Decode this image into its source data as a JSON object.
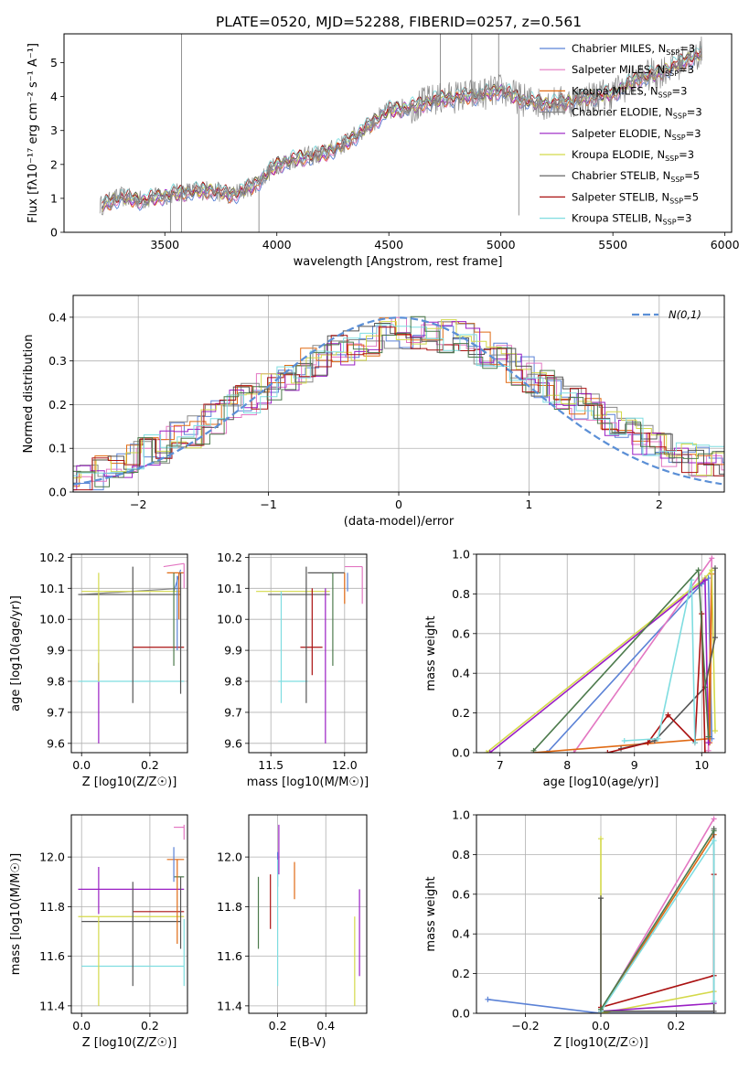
{
  "figure": {
    "title": "PLATE=0520, MJD=52288, FIBERID=0257, z=0.561"
  },
  "colors": {
    "Chabrier MILES": "#5b82d6",
    "Salpeter MILES": "#e377c2",
    "Kroupa MILES": "#e06a14",
    "Chabrier ELODIE": "#888888",
    "Salpeter ELODIE": "#9a1fc4",
    "Kroupa ELODIE": "#d4d94a",
    "Chabrier STELIB": "#555555",
    "Salpeter STELIB": "#aa1111",
    "Kroupa STELIB": "#7fdde0",
    "Normal": "#5b8fd6",
    "Green": "#4c7a4c"
  },
  "chart_data": [
    {
      "id": "spectrum",
      "type": "line",
      "xlabel": "wavelength [Angstrom, rest frame]",
      "ylabel": "Flux [fλ10⁻¹⁷ erg cm⁻² s⁻¹ A⁻¹]",
      "xlim": [
        3050,
        6030
      ],
      "ylim": [
        0,
        5.85
      ],
      "xticks": [
        3500,
        4000,
        4500,
        5000,
        5500,
        6000
      ],
      "yticks": [
        0,
        1,
        2,
        3,
        4,
        5
      ],
      "legend_position": "right",
      "series": [
        {
          "name": "Chabrier MILES, N_SSP=3",
          "label_main": "Chabrier MILES, N",
          "label_sub": "SSP",
          "label_end": "=3",
          "color_key": "Chabrier MILES"
        },
        {
          "name": "Salpeter MILES, N_SSP=3",
          "label_main": "Salpeter MILES, N",
          "label_sub": "SSP",
          "label_end": "=3",
          "color_key": "Salpeter MILES"
        },
        {
          "name": "Kroupa MILES, N_SSP=3",
          "label_main": "Kroupa MILES, N",
          "label_sub": "SSP",
          "label_end": "=3",
          "color_key": "Kroupa MILES"
        },
        {
          "name": "Chabrier ELODIE, N_SSP=3",
          "label_main": "Chabrier ELODIE, N",
          "label_sub": "SSP",
          "label_end": "=3",
          "color_key": "Chabrier ELODIE"
        },
        {
          "name": "Salpeter ELODIE, N_SSP=3",
          "label_main": "Salpeter ELODIE, N",
          "label_sub": "SSP",
          "label_end": "=3",
          "color_key": "Salpeter ELODIE"
        },
        {
          "name": "Kroupa ELODIE, N_SSP=3",
          "label_main": "Kroupa ELODIE, N",
          "label_sub": "SSP",
          "label_end": "=3",
          "color_key": "Kroupa ELODIE"
        },
        {
          "name": "Chabrier STELIB, N_SSP=5",
          "label_main": "Chabrier STELIB, N",
          "label_sub": "SSP",
          "label_end": "=5",
          "color_key": "Chabrier STELIB"
        },
        {
          "name": "Salpeter STELIB, N_SSP=5",
          "label_main": "Salpeter STELIB, N",
          "label_sub": "SSP",
          "label_end": "=5",
          "color_key": "Salpeter STELIB"
        },
        {
          "name": "Kroupa STELIB, N_SSP=3",
          "label_main": "Kroupa STELIB, N",
          "label_sub": "SSP",
          "label_end": "=3",
          "color_key": "Kroupa STELIB"
        }
      ],
      "continuum": {
        "x": [
          3220,
          3300,
          3400,
          3500,
          3600,
          3700,
          3800,
          3900,
          4000,
          4100,
          4200,
          4300,
          4400,
          4500,
          4600,
          4700,
          4800,
          4900,
          5000,
          5100,
          5200,
          5300,
          5400,
          5500,
          5600,
          5700,
          5800,
          5900
        ],
        "y": [
          0.8,
          1.05,
          0.95,
          1.1,
          1.2,
          1.25,
          1.1,
          1.4,
          2.0,
          2.2,
          2.3,
          2.6,
          3.1,
          3.6,
          3.7,
          3.9,
          4.0,
          4.05,
          4.2,
          3.9,
          3.8,
          3.85,
          4.0,
          4.1,
          4.5,
          4.7,
          5.0,
          5.3
        ]
      }
    },
    {
      "id": "residuals",
      "type": "line",
      "xlabel": "(data-model)/error",
      "ylabel": "Normed distribution",
      "xlim": [
        -2.5,
        2.5
      ],
      "ylim": [
        0,
        0.45
      ],
      "xticks": [
        -2,
        -1,
        0,
        1,
        2
      ],
      "yticks": [
        0.0,
        0.1,
        0.2,
        0.3,
        0.4
      ],
      "legend_position": "top-right",
      "legend": "N(0,1)",
      "hist_profile": {
        "x": [
          -2.5,
          -2.0,
          -1.5,
          -1.0,
          -0.5,
          0.0,
          0.5,
          1.0,
          1.5,
          2.0,
          2.5
        ],
        "y": [
          0.02,
          0.08,
          0.15,
          0.24,
          0.32,
          0.37,
          0.35,
          0.27,
          0.18,
          0.1,
          0.06
        ]
      }
    },
    {
      "id": "age_vs_Z",
      "type": "scatter",
      "xlabel": "Z [log10(Z/Z☉)]",
      "ylabel": "age  [log10(age/yr)]",
      "xlim": [
        -0.03,
        0.31
      ],
      "ylim": [
        9.57,
        10.21
      ],
      "xticks": [
        0.0,
        0.2
      ],
      "yticks": [
        9.6,
        9.7,
        9.8,
        9.9,
        10.0,
        10.1,
        10.2
      ],
      "points": [
        {
          "c": "Chabrier MILES",
          "x": [
            0.27,
            0.29
          ],
          "y": [
            10.09,
            10.16
          ]
        },
        {
          "c": "Salpeter MILES",
          "x": [
            0.24,
            0.3
          ],
          "y": [
            10.17,
            10.18
          ]
        },
        {
          "c": "Kroupa MILES",
          "x": [
            0.25,
            0.3
          ],
          "y": [
            10.15,
            10.15
          ]
        },
        {
          "c": "Chabrier ELODIE",
          "x": [
            0.0,
            0.29
          ],
          "y": [
            10.08,
            10.1
          ]
        },
        {
          "c": "Salpeter ELODIE",
          "x": [
            0.05,
            0.05
          ],
          "y": [
            9.6,
            9.86
          ]
        },
        {
          "c": "Kroupa ELODIE",
          "x": [
            0.0,
            0.29
          ],
          "y": [
            10.09,
            10.09
          ]
        },
        {
          "c": "Chabrier STELIB",
          "x": [
            -0.01,
            0.29
          ],
          "y": [
            10.08,
            10.08
          ]
        },
        {
          "c": "Salpeter STELIB",
          "x": [
            0.15,
            0.3
          ],
          "y": [
            9.91,
            9.91
          ]
        },
        {
          "c": "Kroupa STELIB",
          "x": [
            -0.01,
            0.3
          ],
          "y": [
            9.8,
            9.8
          ]
        }
      ],
      "vbars": [
        {
          "c": "Chabrier STELIB",
          "x": 0.15,
          "y": [
            9.73,
            10.17
          ]
        },
        {
          "c": "Kroupa ELODIE",
          "x": 0.05,
          "y": [
            9.8,
            10.15
          ]
        },
        {
          "c": "Green",
          "x": 0.27,
          "y": [
            9.85,
            10.15
          ]
        },
        {
          "c": "Chabrier STELIB",
          "x": 0.29,
          "y": [
            9.76,
            10.15
          ]
        },
        {
          "c": "Salpeter MILES",
          "x": 0.3,
          "y": [
            10.1,
            10.18
          ]
        },
        {
          "c": "Chabrier MILES",
          "x": 0.28,
          "y": [
            9.9,
            10.14
          ]
        },
        {
          "c": "Kroupa MILES",
          "x": 0.285,
          "y": [
            10.0,
            10.15
          ]
        }
      ]
    },
    {
      "id": "age_vs_mass",
      "type": "scatter",
      "xlabel": "mass [log10(M/M☉)]",
      "ylabel": "",
      "xlim": [
        11.35,
        12.15
      ],
      "ylim": [
        9.57,
        10.21
      ],
      "xticks": [
        11.5,
        12.0
      ],
      "yticks": [
        9.6,
        9.7,
        9.8,
        9.9,
        10.0,
        10.1,
        10.2
      ],
      "points": [
        {
          "c": "Chabrier STELIB",
          "x": [
            11.48,
            11.9
          ],
          "y": [
            10.08,
            10.08
          ]
        },
        {
          "c": "Kroupa ELODIE",
          "x": [
            11.4,
            11.9
          ],
          "y": [
            10.09,
            10.09
          ]
        },
        {
          "c": "Salpeter STELIB",
          "x": [
            11.7,
            11.85
          ],
          "y": [
            9.91,
            9.91
          ]
        },
        {
          "c": "Kroupa STELIB",
          "x": [
            11.55,
            11.75
          ],
          "y": [
            9.8,
            9.8
          ]
        },
        {
          "c": "Chabrier STELIB",
          "x": [
            11.75,
            12.0
          ],
          "y": [
            10.15,
            10.15
          ]
        },
        {
          "c": "Salpeter MILES",
          "x": [
            12.0,
            12.12
          ],
          "y": [
            10.17,
            10.17
          ]
        }
      ],
      "vbars": [
        {
          "c": "Chabrier STELIB",
          "x": 11.74,
          "y": [
            9.73,
            10.17
          ]
        },
        {
          "c": "Kroupa STELIB",
          "x": 11.57,
          "y": [
            9.73,
            10.09
          ]
        },
        {
          "c": "Salpeter ELODIE",
          "x": 11.87,
          "y": [
            9.6,
            10.1
          ]
        },
        {
          "c": "Salpeter STELIB",
          "x": 11.78,
          "y": [
            9.82,
            10.1
          ]
        },
        {
          "c": "Green",
          "x": 11.92,
          "y": [
            9.85,
            10.15
          ]
        },
        {
          "c": "Salpeter MILES",
          "x": 12.12,
          "y": [
            10.05,
            10.17
          ]
        },
        {
          "c": "Kroupa MILES",
          "x": 12.0,
          "y": [
            10.05,
            10.15
          ]
        },
        {
          "c": "Chabrier MILES",
          "x": 12.02,
          "y": [
            10.09,
            10.15
          ]
        }
      ]
    },
    {
      "id": "weight_vs_age",
      "type": "line",
      "xlabel": "age  [log10(age/yr)]",
      "ylabel": "mass weight",
      "xlim": [
        6.65,
        10.35
      ],
      "ylim": [
        0,
        1
      ],
      "xticks": [
        7,
        8,
        9,
        10
      ],
      "yticks": [
        0.0,
        0.2,
        0.4,
        0.6,
        0.8,
        1.0
      ],
      "series": [
        {
          "c": "Chabrier MILES",
          "x": [
            7.7,
            10.0,
            10.1,
            10.15
          ],
          "y": [
            0.0,
            0.85,
            0.88,
            0.07
          ]
        },
        {
          "c": "Salpeter MILES",
          "x": [
            8.1,
            10.15,
            10.1
          ],
          "y": [
            0.0,
            0.98,
            0.01
          ]
        },
        {
          "c": "Kroupa MILES",
          "x": [
            7.5,
            10.1,
            10.15,
            10.12
          ],
          "y": [
            0.0,
            0.07,
            0.9,
            0.05
          ]
        },
        {
          "c": "Kroupa ELODIE",
          "x": [
            6.8,
            10.05,
            10.15,
            10.2
          ],
          "y": [
            0.0,
            0.88,
            0.92,
            0.11
          ]
        },
        {
          "c": "Salpeter ELODIE",
          "x": [
            6.85,
            10.05,
            10.1
          ],
          "y": [
            0.0,
            0.87,
            0.05
          ]
        },
        {
          "c": "Chabrier STELIB",
          "x": [
            8.8,
            9.3,
            10.05,
            10.2,
            10.2
          ],
          "y": [
            0.02,
            0.06,
            0.33,
            0.58,
            0.93
          ]
        },
        {
          "c": "Salpeter STELIB",
          "x": [
            8.6,
            9.2,
            9.5,
            9.9,
            10.0,
            10.05
          ],
          "y": [
            0.0,
            0.05,
            0.19,
            0.05,
            0.7,
            0.0
          ]
        },
        {
          "c": "Kroupa STELIB",
          "x": [
            8.85,
            9.35,
            9.85,
            9.9
          ],
          "y": [
            0.06,
            0.07,
            0.87,
            0.05
          ]
        },
        {
          "c": "Green",
          "x": [
            7.5,
            9.95,
            10.1
          ],
          "y": [
            0.01,
            0.92,
            0.08
          ]
        }
      ]
    },
    {
      "id": "mass_vs_Z",
      "type": "scatter",
      "xlabel": "Z [log10(Z/Z☉)]",
      "ylabel": "mass [log10(M/M☉)]",
      "xlim": [
        -0.03,
        0.31
      ],
      "ylim": [
        11.37,
        12.17
      ],
      "xticks": [
        0.0,
        0.2
      ],
      "yticks": [
        11.4,
        11.6,
        11.8,
        12.0
      ],
      "points": [
        {
          "c": "Salpeter MILES",
          "x": [
            0.27,
            0.3
          ],
          "y": [
            12.12,
            12.12
          ]
        },
        {
          "c": "Kroupa MILES",
          "x": [
            0.25,
            0.3
          ],
          "y": [
            11.99,
            11.99
          ]
        },
        {
          "c": "Salpeter ELODIE",
          "x": [
            -0.01,
            0.3
          ],
          "y": [
            11.87,
            11.87
          ]
        },
        {
          "c": "Green",
          "x": [
            0.27,
            0.3
          ],
          "y": [
            11.92,
            11.92
          ]
        },
        {
          "c": "Salpeter STELIB",
          "x": [
            0.15,
            0.3
          ],
          "y": [
            11.78,
            11.78
          ]
        },
        {
          "c": "Kroupa ELODIE",
          "x": [
            -0.01,
            0.3
          ],
          "y": [
            11.76,
            11.76
          ]
        },
        {
          "c": "Chabrier STELIB",
          "x": [
            0.0,
            0.29
          ],
          "y": [
            11.74,
            11.74
          ]
        },
        {
          "c": "Kroupa STELIB",
          "x": [
            0.0,
            0.3
          ],
          "y": [
            11.56,
            11.56
          ]
        }
      ],
      "vbars": [
        {
          "c": "Salpeter ELODIE",
          "x": 0.05,
          "y": [
            11.77,
            11.96
          ]
        },
        {
          "c": "Kroupa ELODIE",
          "x": 0.05,
          "y": [
            11.4,
            11.76
          ]
        },
        {
          "c": "Chabrier STELIB",
          "x": 0.15,
          "y": [
            11.48,
            11.9
          ]
        },
        {
          "c": "Chabrier MILES",
          "x": 0.27,
          "y": [
            11.9,
            12.04
          ]
        },
        {
          "c": "Kroupa MILES",
          "x": 0.28,
          "y": [
            11.65,
            11.99
          ]
        },
        {
          "c": "Chabrier STELIB",
          "x": 0.29,
          "y": [
            11.63,
            11.92
          ]
        },
        {
          "c": "Kroupa STELIB",
          "x": 0.3,
          "y": [
            11.48,
            11.75
          ]
        },
        {
          "c": "Salpeter MILES",
          "x": 0.3,
          "y": [
            12.07,
            12.13
          ]
        }
      ]
    },
    {
      "id": "mass_vs_ebv",
      "type": "scatter",
      "xlabel": "E(B-V)",
      "ylabel": "",
      "xlim": [
        0.08,
        0.57
      ],
      "ylim": [
        11.37,
        12.17
      ],
      "xticks": [
        0.2,
        0.4
      ],
      "yticks": [
        11.4,
        11.6,
        11.8,
        12.0
      ],
      "vbars": [
        {
          "c": "Green",
          "x": 0.12,
          "y": [
            11.63,
            11.92
          ]
        },
        {
          "c": "Salpeter STELIB",
          "x": 0.17,
          "y": [
            11.71,
            11.93
          ]
        },
        {
          "c": "Chabrier MILES",
          "x": 0.2,
          "y": [
            11.88,
            12.02
          ]
        },
        {
          "c": "Salpeter ELODIE",
          "x": 0.205,
          "y": [
            11.93,
            12.13
          ]
        },
        {
          "c": "Kroupa STELIB",
          "x": 0.2,
          "y": [
            11.48,
            11.99
          ]
        },
        {
          "c": "Kroupa MILES",
          "x": 0.27,
          "y": [
            11.83,
            11.98
          ]
        },
        {
          "c": "Kroupa ELODIE",
          "x": 0.52,
          "y": [
            11.4,
            11.76
          ]
        },
        {
          "c": "Salpeter ELODIE",
          "x": 0.54,
          "y": [
            11.52,
            11.87
          ]
        }
      ]
    },
    {
      "id": "weight_vs_Z",
      "type": "line",
      "xlabel": "Z [log10(Z/Z☉)]",
      "ylabel": "mass weight",
      "xlim": [
        -0.33,
        0.33
      ],
      "ylim": [
        0,
        1
      ],
      "xticks": [
        -0.2,
        0.0,
        0.2
      ],
      "yticks": [
        0.0,
        0.2,
        0.4,
        0.6,
        0.8,
        1.0
      ],
      "series": [
        {
          "c": "Chabrier MILES",
          "x": [
            -0.3,
            0.0,
            0.3
          ],
          "y": [
            0.07,
            0.0,
            0.0
          ]
        },
        {
          "c": "Salpeter MILES",
          "x": [
            0.0,
            0.3
          ],
          "y": [
            0.01,
            0.98
          ]
        },
        {
          "c": "Kroupa MILES",
          "x": [
            0.0,
            0.3
          ],
          "y": [
            0.01,
            0.9
          ]
        },
        {
          "c": "Kroupa ELODIE",
          "x": [
            0.0,
            0.0,
            0.0,
            0.3
          ],
          "y": [
            0.88,
            0.0,
            0.0,
            0.11
          ]
        },
        {
          "c": "Salpeter ELODIE",
          "x": [
            0.0,
            0.3
          ],
          "y": [
            0.01,
            0.05
          ]
        },
        {
          "c": "Chabrier STELIB",
          "x": [
            0.0,
            0.0,
            0.3,
            0.3
          ],
          "y": [
            0.58,
            0.01,
            0.01,
            0.93
          ]
        },
        {
          "c": "Salpeter STELIB",
          "x": [
            0.0,
            0.3,
            0.3
          ],
          "y": [
            0.03,
            0.19,
            0.7
          ]
        },
        {
          "c": "Kroupa STELIB",
          "x": [
            0.0,
            0.3,
            0.3
          ],
          "y": [
            0.01,
            0.87,
            0.06
          ]
        },
        {
          "c": "Green",
          "x": [
            0.0,
            0.3
          ],
          "y": [
            0.02,
            0.92
          ]
        }
      ]
    }
  ]
}
